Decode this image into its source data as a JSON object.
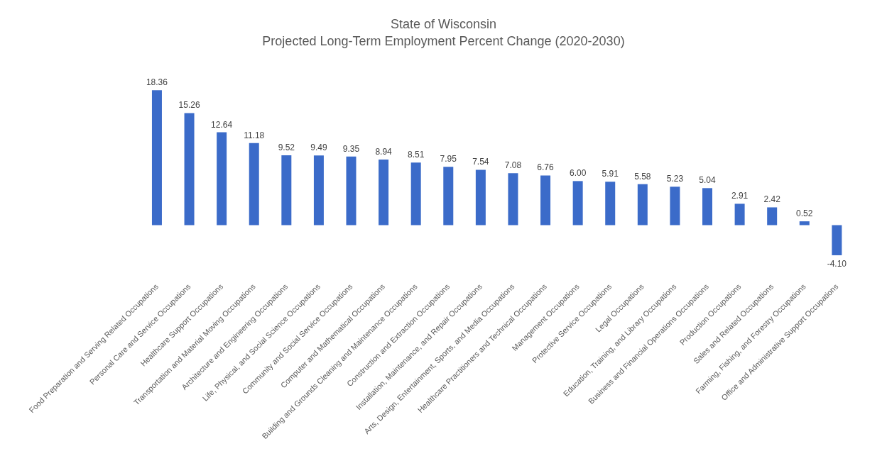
{
  "chart_data": {
    "type": "bar",
    "title": "State of Wisconsin",
    "subtitle": "Projected Long-Term Employment Percent Change (2020-2030)",
    "categories": [
      "Food Preparation and Serving Related Occupations",
      "Personal Care and Service Occupations",
      "Healthcare Support Occupations",
      "Transportation and Material Moving Occupations",
      "Architecture and Engineering Occupations",
      "Life, Physical, and Social Science Occupations",
      "Community and Social Service Occupations",
      "Computer and Mathematical Occupations",
      "Building and Grounds Cleaning and Maintenance Occupations",
      "Construction and Extraction Occupations",
      "Installation, Maintenance, and Repair Occupations",
      "Arts, Design, Entertainment, Sports, and Media Occupations",
      "Healthcare Practitioners and Technical Occupations",
      "Management Occupations",
      "Protective Service Occupations",
      "Legal Occupations",
      "Education, Training, and Library Occupations",
      "Business and Financial Operations Occupations",
      "Production Occupations",
      "Sales and Related Occupations",
      "Farming, Fishing, and Forestry Occupations",
      "Office and Administrative Support Occupations"
    ],
    "values": [
      18.36,
      15.26,
      12.64,
      11.18,
      9.52,
      9.49,
      9.35,
      8.94,
      8.51,
      7.95,
      7.54,
      7.08,
      6.76,
      6.0,
      5.91,
      5.58,
      5.23,
      5.04,
      2.91,
      2.42,
      0.52,
      -4.1
    ],
    "value_labels": [
      "18.36",
      "15.26",
      "12.64",
      "11.18",
      "9.52",
      "9.49",
      "9.35",
      "8.94",
      "8.51",
      "7.95",
      "7.54",
      "7.08",
      "6.76",
      "6.00",
      "5.91",
      "5.58",
      "5.23",
      "5.04",
      "2.91",
      "2.42",
      "0.52",
      "-4.10"
    ],
    "color": "#3b6bc9",
    "grid": false,
    "legend": false
  }
}
